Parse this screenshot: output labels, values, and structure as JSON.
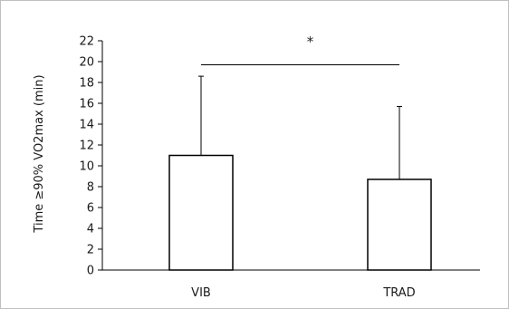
{
  "chart_data": {
    "type": "bar",
    "categories": [
      "VIB",
      "TRAD"
    ],
    "values": [
      11.0,
      8.7
    ],
    "error_upper": [
      18.6,
      15.7
    ],
    "ylabel": "Time ≥90%  VO2max (min)",
    "ylim": [
      0,
      22
    ],
    "yticks": [
      0,
      2,
      4,
      6,
      8,
      10,
      12,
      14,
      16,
      18,
      20,
      22
    ],
    "grid": false,
    "significance": {
      "label": "*",
      "between": [
        "VIB",
        "TRAD"
      ],
      "line_value": 19.7
    },
    "colors": {
      "bar_fill": "#ffffff",
      "bar_stroke": "#000000",
      "axis": "#000000",
      "border": "#bfbfbf"
    }
  }
}
